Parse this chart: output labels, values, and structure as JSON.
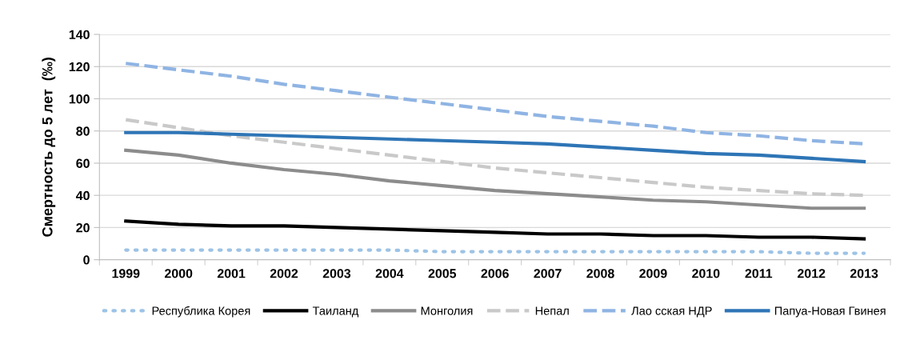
{
  "chart_data": {
    "type": "line",
    "ylabel": "Смертность до 5 лет  (‰)",
    "categories": [
      "1999",
      "2000",
      "2001",
      "2002",
      "2003",
      "2004",
      "2005",
      "2006",
      "2007",
      "2008",
      "2009",
      "2010",
      "2011",
      "2012",
      "2013"
    ],
    "series": [
      {
        "name": "Республика Корея",
        "color": "#9dc3e6",
        "line_style": "dotted",
        "values": [
          6,
          6,
          6,
          6,
          6,
          6,
          5,
          5,
          5,
          5,
          5,
          5,
          5,
          4,
          4
        ]
      },
      {
        "name": "Таиланд",
        "color": "#000000",
        "line_style": "solid",
        "values": [
          24,
          22,
          21,
          21,
          20,
          19,
          18,
          17,
          16,
          16,
          15,
          15,
          14,
          14,
          13
        ]
      },
      {
        "name": "Монголия",
        "color": "#8c8c8c",
        "line_style": "solid",
        "values": [
          68,
          65,
          60,
          56,
          53,
          49,
          46,
          43,
          41,
          39,
          37,
          36,
          34,
          32,
          32
        ]
      },
      {
        "name": "Непал",
        "color": "#c9c9c9",
        "line_style": "dashed",
        "values": [
          87,
          82,
          77,
          73,
          69,
          65,
          61,
          57,
          54,
          51,
          48,
          45,
          43,
          41,
          40
        ]
      },
      {
        "name": "Лао сская НДР",
        "color": "#8fb4e3",
        "line_style": "dashed",
        "values": [
          122,
          118,
          114,
          109,
          105,
          101,
          97,
          93,
          89,
          86,
          83,
          79,
          77,
          74,
          72
        ]
      },
      {
        "name": "Папуа-Новая Гвинея",
        "color": "#2e75b6",
        "line_style": "solid",
        "values": [
          79,
          79,
          78,
          77,
          76,
          75,
          74,
          73,
          72,
          70,
          68,
          66,
          65,
          63,
          61
        ]
      }
    ],
    "ylim": [
      0,
      140
    ],
    "yticks": [
      0,
      20,
      40,
      60,
      80,
      100,
      120,
      140
    ],
    "grid": "y",
    "legend": "bottom",
    "marker": "none"
  }
}
